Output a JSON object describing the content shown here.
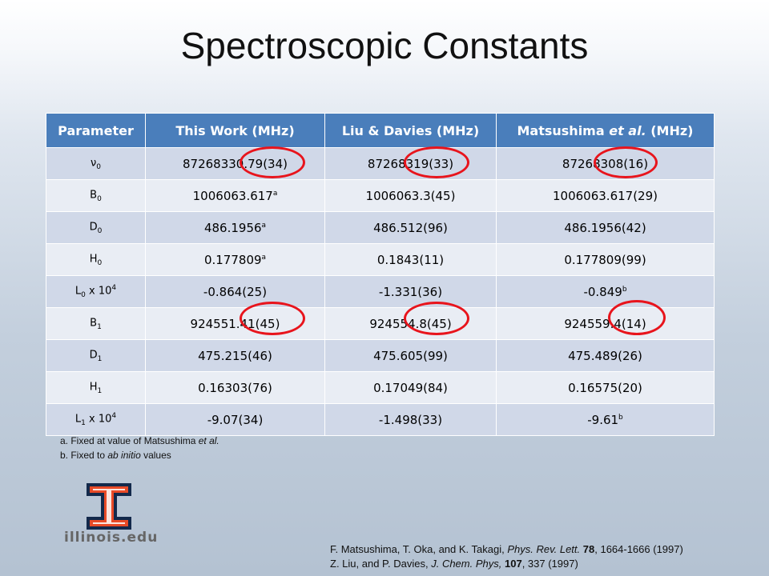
{
  "title": "Spectroscopic Constants",
  "table": {
    "headers": {
      "parameter": "Parameter",
      "this_work": "This Work (MHz)",
      "liu_davies": "Liu & Davies (MHz)",
      "matsushima_pre": "Matsushima ",
      "matsushima_em": "et al.",
      "matsushima_post": " (MHz)"
    },
    "rows": [
      {
        "p_main": "ν",
        "p_sub": "0",
        "p_mid": "",
        "p_sup": "",
        "this_work": "87268330.79(34)",
        "this_work_sup": "",
        "liu_davies": "87268319(33)",
        "matsushima": "87268308(16)",
        "matsushima_sup": ""
      },
      {
        "p_main": "B",
        "p_sub": "0",
        "p_mid": "",
        "p_sup": "",
        "this_work": "1006063.617",
        "this_work_sup": "a",
        "liu_davies": "1006063.3(45)",
        "matsushima": "1006063.617(29)",
        "matsushima_sup": ""
      },
      {
        "p_main": "D",
        "p_sub": "0",
        "p_mid": "",
        "p_sup": "",
        "this_work": "486.1956",
        "this_work_sup": "a",
        "liu_davies": "486.512(96)",
        "matsushima": "486.1956(42)",
        "matsushima_sup": ""
      },
      {
        "p_main": "H",
        "p_sub": "0",
        "p_mid": "",
        "p_sup": "",
        "this_work": "0.177809",
        "this_work_sup": "a",
        "liu_davies": "0.1843(11)",
        "matsushima": "0.177809(99)",
        "matsushima_sup": ""
      },
      {
        "p_main": "L",
        "p_sub": "0",
        "p_mid": " x 10",
        "p_sup": "4",
        "this_work": "-0.864(25)",
        "this_work_sup": "",
        "liu_davies": "-1.331(36)",
        "matsushima": "-0.849",
        "matsushima_sup": "b"
      },
      {
        "p_main": "B",
        "p_sub": "1",
        "p_mid": "",
        "p_sup": "",
        "this_work": "924551.41(45)",
        "this_work_sup": "",
        "liu_davies": "924554.8(45)",
        "matsushima": "924559.4(14)",
        "matsushima_sup": ""
      },
      {
        "p_main": "D",
        "p_sub": "1",
        "p_mid": "",
        "p_sup": "",
        "this_work": "475.215(46)",
        "this_work_sup": "",
        "liu_davies": "475.605(99)",
        "matsushima": "475.489(26)",
        "matsushima_sup": ""
      },
      {
        "p_main": "H",
        "p_sub": "1",
        "p_mid": "",
        "p_sup": "",
        "this_work": "0.16303(76)",
        "this_work_sup": "",
        "liu_davies": "0.17049(84)",
        "matsushima": "0.16575(20)",
        "matsushima_sup": ""
      },
      {
        "p_main": "L",
        "p_sub": "1",
        "p_mid": " x 10",
        "p_sup": "4",
        "this_work": "-9.07(34)",
        "this_work_sup": "",
        "liu_davies": "-1.498(33)",
        "matsushima": "-9.61",
        "matsushima_sup": "b"
      }
    ]
  },
  "footnotes": {
    "a_pre": "a. Fixed at value of Matsushima ",
    "a_em": "et al.",
    "b_pre": "b. Fixed to ",
    "b_em": "ab initio",
    "b_post": " values"
  },
  "references": {
    "ref1_pre": "F. Matsushima, T. Oka, and K. Takagi, ",
    "ref1_journal": "Phys. Rev. Lett.",
    "ref1_sp": " ",
    "ref1_vol": "78",
    "ref1_post": ", 1664-1666 (1997)",
    "ref2_pre": "Z. Liu, and P. Davies, ",
    "ref2_journal": "J. Chem. Phys,",
    "ref2_sp": " ",
    "ref2_vol": "107",
    "ref2_post": ", 337 (1997)"
  },
  "logo": {
    "text": "illinois.edu",
    "icon": "block-i-logo-icon",
    "colors": {
      "orange": "#e84a27",
      "navy": "#13294b"
    }
  },
  "colors": {
    "header_bg": "#4a7ebb",
    "row_odd": "#d0d8e8",
    "row_even": "#e9edf4",
    "circle": "#e8141c"
  }
}
